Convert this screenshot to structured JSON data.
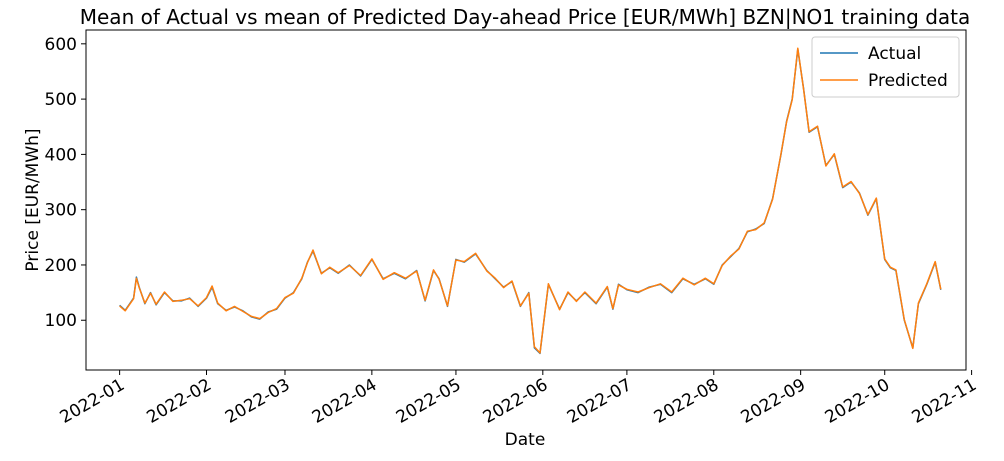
{
  "chart_data": {
    "type": "line",
    "title": "Mean of Actual vs mean of Predicted Day-ahead Price [EUR/MWh] BZN|NO1 training data",
    "xlabel": "Date",
    "ylabel": "Price [EUR/MWh]",
    "xlim": [
      "2021-12-20",
      "2022-10-30"
    ],
    "ylim": [
      10,
      625
    ],
    "x_ticks": [
      "2022-01",
      "2022-02",
      "2022-03",
      "2022-04",
      "2022-05",
      "2022-06",
      "2022-07",
      "2022-08",
      "2022-09",
      "2022-10",
      "2022-11"
    ],
    "y_ticks": [
      100,
      200,
      300,
      400,
      500,
      600
    ],
    "legend": {
      "position": "top-right"
    },
    "grid": false,
    "series": [
      {
        "name": "Actual",
        "color": "#1f77b4",
        "x": [
          "2022-01-01",
          "2022-01-03",
          "2022-01-06",
          "2022-01-07",
          "2022-01-08",
          "2022-01-10",
          "2022-01-12",
          "2022-01-14",
          "2022-01-17",
          "2022-01-20",
          "2022-01-23",
          "2022-01-26",
          "2022-01-29",
          "2022-02-01",
          "2022-02-03",
          "2022-02-05",
          "2022-02-08",
          "2022-02-11",
          "2022-02-14",
          "2022-02-17",
          "2022-02-20",
          "2022-02-23",
          "2022-02-26",
          "2022-03-01",
          "2022-03-04",
          "2022-03-07",
          "2022-03-09",
          "2022-03-11",
          "2022-03-14",
          "2022-03-17",
          "2022-03-20",
          "2022-03-24",
          "2022-03-28",
          "2022-04-01",
          "2022-04-05",
          "2022-04-09",
          "2022-04-13",
          "2022-04-17",
          "2022-04-20",
          "2022-04-23",
          "2022-04-25",
          "2022-04-28",
          "2022-05-01",
          "2022-05-04",
          "2022-05-08",
          "2022-05-12",
          "2022-05-15",
          "2022-05-18",
          "2022-05-21",
          "2022-05-24",
          "2022-05-27",
          "2022-05-29",
          "2022-05-31",
          "2022-06-03",
          "2022-06-07",
          "2022-06-10",
          "2022-06-13",
          "2022-06-16",
          "2022-06-20",
          "2022-06-24",
          "2022-06-26",
          "2022-06-28",
          "2022-07-01",
          "2022-07-05",
          "2022-07-09",
          "2022-07-13",
          "2022-07-17",
          "2022-07-21",
          "2022-07-25",
          "2022-07-29",
          "2022-08-01",
          "2022-08-04",
          "2022-08-07",
          "2022-08-10",
          "2022-08-13",
          "2022-08-16",
          "2022-08-19",
          "2022-08-22",
          "2022-08-25",
          "2022-08-27",
          "2022-08-29",
          "2022-08-31",
          "2022-09-02",
          "2022-09-04",
          "2022-09-07",
          "2022-09-10",
          "2022-09-13",
          "2022-09-16",
          "2022-09-19",
          "2022-09-22",
          "2022-09-25",
          "2022-09-28",
          "2022-10-01",
          "2022-10-03",
          "2022-10-05",
          "2022-10-08",
          "2022-10-11",
          "2022-10-13",
          "2022-10-16",
          "2022-10-19",
          "2022-10-21"
        ],
        "y": [
          127,
          118,
          140,
          178,
          160,
          130,
          150,
          128,
          150,
          135,
          135,
          140,
          125,
          140,
          160,
          130,
          118,
          124,
          117,
          106,
          102,
          115,
          120,
          140,
          150,
          175,
          205,
          225,
          185,
          195,
          185,
          200,
          180,
          210,
          175,
          185,
          175,
          190,
          135,
          190,
          175,
          125,
          210,
          205,
          220,
          190,
          175,
          160,
          170,
          125,
          150,
          50,
          40,
          165,
          120,
          150,
          135,
          150,
          130,
          160,
          120,
          165,
          155,
          150,
          160,
          165,
          150,
          175,
          165,
          175,
          165,
          200,
          215,
          230,
          260,
          265,
          275,
          320,
          400,
          460,
          500,
          590,
          520,
          440,
          450,
          380,
          400,
          340,
          350,
          330,
          290,
          320,
          210,
          195,
          190,
          100,
          50,
          130,
          165,
          205,
          155
        ]
      },
      {
        "name": "Predicted",
        "color": "#ff7f0e",
        "x": [
          "2022-01-01",
          "2022-01-03",
          "2022-01-06",
          "2022-01-07",
          "2022-01-08",
          "2022-01-10",
          "2022-01-12",
          "2022-01-14",
          "2022-01-17",
          "2022-01-20",
          "2022-01-23",
          "2022-01-26",
          "2022-01-29",
          "2022-02-01",
          "2022-02-03",
          "2022-02-05",
          "2022-02-08",
          "2022-02-11",
          "2022-02-14",
          "2022-02-17",
          "2022-02-20",
          "2022-02-23",
          "2022-02-26",
          "2022-03-01",
          "2022-03-04",
          "2022-03-07",
          "2022-03-09",
          "2022-03-11",
          "2022-03-14",
          "2022-03-17",
          "2022-03-20",
          "2022-03-24",
          "2022-03-28",
          "2022-04-01",
          "2022-04-05",
          "2022-04-09",
          "2022-04-13",
          "2022-04-17",
          "2022-04-20",
          "2022-04-23",
          "2022-04-25",
          "2022-04-28",
          "2022-05-01",
          "2022-05-04",
          "2022-05-08",
          "2022-05-12",
          "2022-05-15",
          "2022-05-18",
          "2022-05-21",
          "2022-05-24",
          "2022-05-27",
          "2022-05-29",
          "2022-05-31",
          "2022-06-03",
          "2022-06-07",
          "2022-06-10",
          "2022-06-13",
          "2022-06-16",
          "2022-06-20",
          "2022-06-24",
          "2022-06-26",
          "2022-06-28",
          "2022-07-01",
          "2022-07-05",
          "2022-07-09",
          "2022-07-13",
          "2022-07-17",
          "2022-07-21",
          "2022-07-25",
          "2022-07-29",
          "2022-08-01",
          "2022-08-04",
          "2022-08-07",
          "2022-08-10",
          "2022-08-13",
          "2022-08-16",
          "2022-08-19",
          "2022-08-22",
          "2022-08-25",
          "2022-08-27",
          "2022-08-29",
          "2022-08-31",
          "2022-09-02",
          "2022-09-04",
          "2022-09-07",
          "2022-09-10",
          "2022-09-13",
          "2022-09-16",
          "2022-09-19",
          "2022-09-22",
          "2022-09-25",
          "2022-09-28",
          "2022-10-01",
          "2022-10-03",
          "2022-10-05",
          "2022-10-08",
          "2022-10-11",
          "2022-10-13",
          "2022-10-16",
          "2022-10-19",
          "2022-10-21"
        ],
        "y": [
          126,
          117,
          139,
          176,
          159,
          131,
          149,
          129,
          151,
          134,
          136,
          139,
          126,
          141,
          162,
          131,
          117,
          125,
          116,
          107,
          103,
          114,
          121,
          141,
          149,
          176,
          204,
          227,
          184,
          196,
          186,
          199,
          181,
          211,
          174,
          186,
          176,
          189,
          136,
          191,
          174,
          126,
          209,
          206,
          221,
          189,
          176,
          159,
          171,
          126,
          149,
          52,
          41,
          166,
          119,
          151,
          134,
          151,
          131,
          161,
          121,
          164,
          156,
          151,
          159,
          166,
          151,
          176,
          164,
          176,
          166,
          199,
          216,
          229,
          261,
          264,
          276,
          319,
          401,
          459,
          499,
          592,
          519,
          441,
          451,
          379,
          401,
          341,
          351,
          329,
          291,
          321,
          211,
          196,
          191,
          101,
          49,
          131,
          166,
          206,
          156
        ]
      }
    ]
  }
}
